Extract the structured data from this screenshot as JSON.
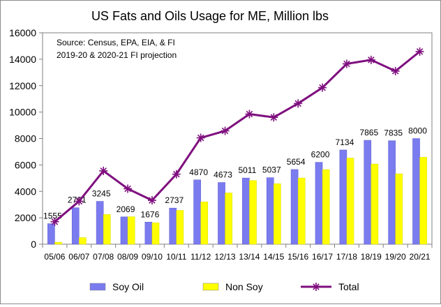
{
  "chart_data": {
    "type": "bar",
    "title": "US Fats and Oils Usage for ME, Million lbs",
    "annotation_lines": [
      "Source: Census, EPA,  EIA, & FI",
      "2019-20 & 2020-21 FI projection"
    ],
    "categories": [
      "05/06",
      "06/07",
      "07/08",
      "08/09",
      "09/10",
      "10/11",
      "11/12",
      "12/13",
      "13/14",
      "14/15",
      "15/16",
      "16/17",
      "17/18",
      "18/19",
      "19/20",
      "20/21"
    ],
    "ylim": [
      0,
      16000
    ],
    "yticks": [
      0,
      2000,
      4000,
      6000,
      8000,
      10000,
      12000,
      14000,
      16000
    ],
    "grid": false,
    "legend_position": "bottom",
    "series": [
      {
        "name": "Soy Oil",
        "type": "bar",
        "color": "#7b7bf0",
        "values": [
          1555,
          2761,
          3245,
          2069,
          1676,
          2737,
          4870,
          4673,
          5011,
          5037,
          5654,
          6200,
          7134,
          7865,
          7835,
          8000
        ]
      },
      {
        "name": "Non Soy",
        "type": "bar",
        "color": "#ffff00",
        "values": [
          150,
          500,
          2250,
          2080,
          1620,
          2560,
          3200,
          3880,
          4820,
          4580,
          5010,
          5650,
          6520,
          6070,
          5330,
          6580
        ]
      },
      {
        "name": "Total",
        "type": "line",
        "color": "#7f0f7f",
        "values": [
          1700,
          3250,
          5550,
          4200,
          3320,
          5300,
          8050,
          8580,
          9850,
          9600,
          10650,
          11850,
          13650,
          13950,
          13100,
          14580
        ]
      }
    ],
    "data_labels": {
      "series": "Soy Oil",
      "text": [
        "1555",
        "2761",
        "3245",
        "2069",
        "1676",
        "2737",
        "4870",
        "4673",
        "5011",
        "5037",
        "5654",
        "6200",
        "7134",
        "7865",
        "7835",
        "8000"
      ]
    }
  }
}
